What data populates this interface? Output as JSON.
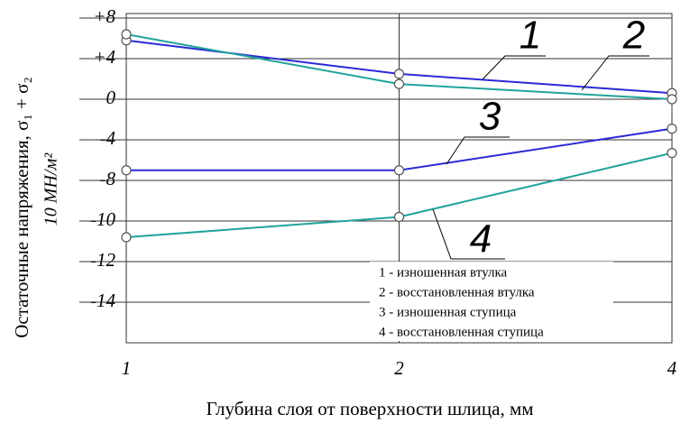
{
  "chart_data": {
    "type": "line",
    "y_label": "Остаточные напряжения, σ₁ + σ₂",
    "y_unit": "10 МН/м²",
    "x_label": "Глубина слоя от поверхности шлица, мм",
    "categories": [
      "1",
      "2",
      "4"
    ],
    "series": [
      {
        "name": "1 - изношенная втулка",
        "tag": "1",
        "color": "#2a2ad6",
        "values": [
          5.8,
          2.5,
          0.6
        ]
      },
      {
        "name": "2 - восстановленная втулка",
        "tag": "2",
        "color": "#1fa39a",
        "values": [
          6.4,
          1.5,
          0
        ]
      },
      {
        "name": "3 - изношенная ступица",
        "tag": "3",
        "color": "#2a2ad6",
        "values": [
          -7.0,
          -7.0,
          -2.9
        ]
      },
      {
        "name": "4 - восстановленная ступица",
        "tag": "4",
        "color": "#1fa39a",
        "values": [
          -10.8,
          -9.8,
          -5.3
        ]
      }
    ],
    "ylim": [
      -16,
      8
    ],
    "yticks": [
      {
        "value": 8,
        "label": "+8"
      },
      {
        "value": 4,
        "label": "+4"
      },
      0,
      -4,
      -8,
      -10,
      -12,
      -14
    ],
    "grid": true
  }
}
